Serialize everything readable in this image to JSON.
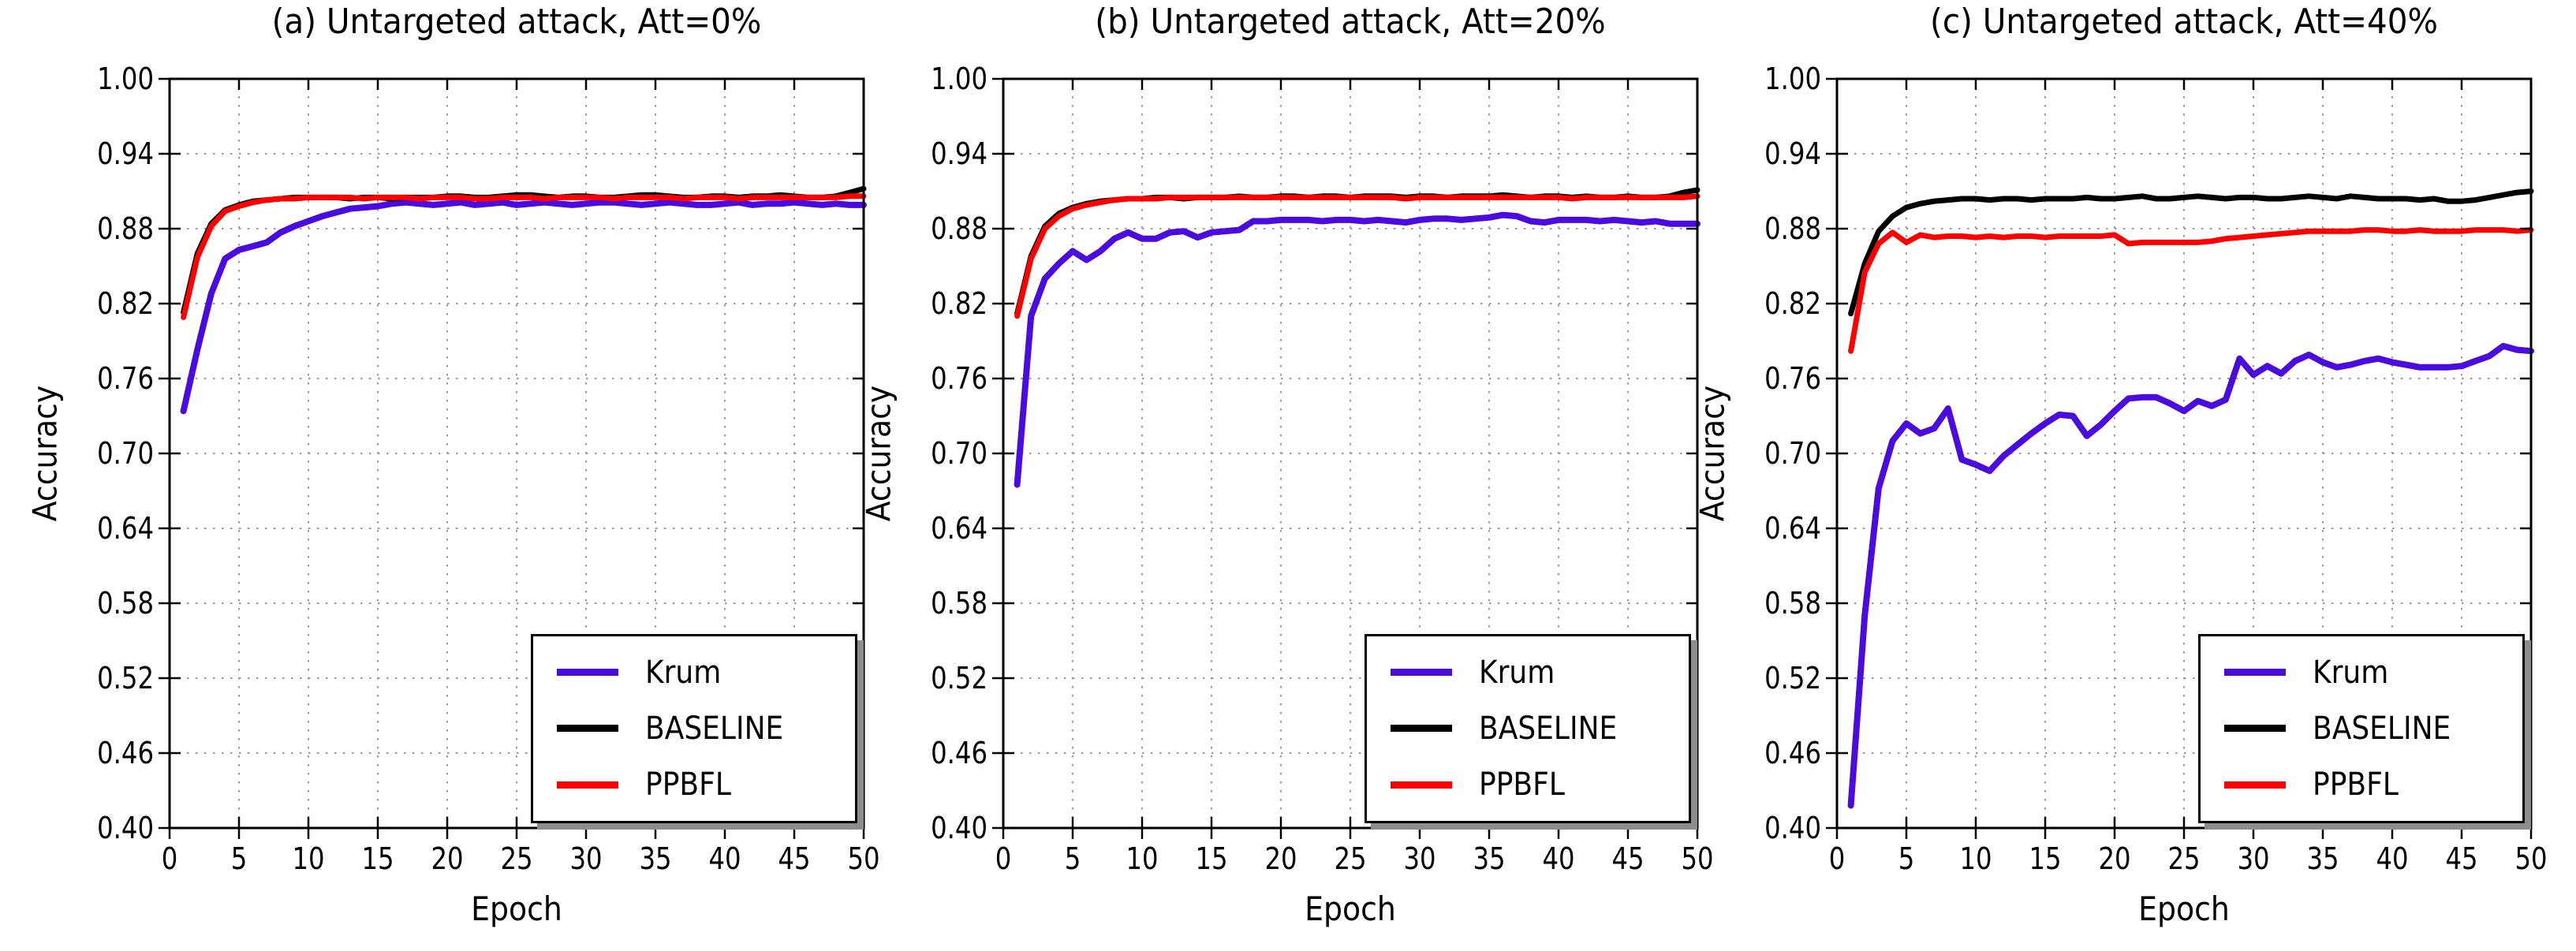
{
  "figure": {
    "background": "#ffffff",
    "axis_color": "#000000",
    "grid_color": "#999999",
    "ylabel": "Accuracy",
    "xlabel": "Epoch",
    "ytick_labels": [
      "0.40",
      "0.46",
      "0.52",
      "0.58",
      "0.64",
      "0.70",
      "0.76",
      "0.82",
      "0.88",
      "0.94",
      "1.00"
    ],
    "xtick_labels": [
      "0",
      "5",
      "10",
      "15",
      "20",
      "25",
      "30",
      "35",
      "40",
      "45",
      "50"
    ],
    "legend": {
      "position": "lower right",
      "entries": [
        {
          "label": "Krum",
          "color": "#4b0be0"
        },
        {
          "label": "BASELINE",
          "color": "#000000"
        },
        {
          "label": "PPBFL",
          "color": "#ff0000"
        }
      ]
    }
  },
  "chart_data": [
    {
      "type": "line",
      "title": "(a) Untargeted attack, Att=0%",
      "xlabel": "Epoch",
      "ylabel": "Accuracy",
      "xlim": [
        0,
        50
      ],
      "ylim": [
        0.4,
        1.0
      ],
      "xticks": [
        0,
        5,
        10,
        15,
        20,
        25,
        30,
        35,
        40,
        45,
        50
      ],
      "yticks": [
        0.4,
        0.46,
        0.52,
        0.58,
        0.64,
        0.7,
        0.76,
        0.82,
        0.88,
        0.94,
        1.0
      ],
      "grid": true,
      "legend_position": "lower right",
      "x": [
        1,
        2,
        3,
        4,
        5,
        6,
        7,
        8,
        9,
        10,
        11,
        12,
        13,
        14,
        15,
        16,
        17,
        18,
        19,
        20,
        21,
        22,
        23,
        24,
        25,
        26,
        27,
        28,
        29,
        30,
        31,
        32,
        33,
        34,
        35,
        36,
        37,
        38,
        39,
        40,
        41,
        42,
        43,
        44,
        45,
        46,
        47,
        48,
        49,
        50
      ],
      "series": [
        {
          "name": "Krum",
          "color": "#4b0be0",
          "values": [
            0.734,
            0.783,
            0.828,
            0.856,
            0.863,
            0.866,
            0.869,
            0.877,
            0.882,
            0.886,
            0.89,
            0.893,
            0.896,
            0.897,
            0.898,
            0.9,
            0.901,
            0.9,
            0.899,
            0.9,
            0.901,
            0.899,
            0.9,
            0.901,
            0.899,
            0.9,
            0.901,
            0.9,
            0.899,
            0.9,
            0.901,
            0.901,
            0.9,
            0.899,
            0.9,
            0.901,
            0.9,
            0.899,
            0.899,
            0.9,
            0.901,
            0.899,
            0.9,
            0.9,
            0.901,
            0.9,
            0.899,
            0.9,
            0.899,
            0.899
          ]
        },
        {
          "name": "BASELINE",
          "color": "#000000",
          "values": [
            0.813,
            0.86,
            0.884,
            0.895,
            0.899,
            0.902,
            0.903,
            0.904,
            0.905,
            0.905,
            0.905,
            0.905,
            0.904,
            0.905,
            0.905,
            0.904,
            0.905,
            0.905,
            0.905,
            0.906,
            0.906,
            0.905,
            0.905,
            0.906,
            0.907,
            0.907,
            0.906,
            0.905,
            0.906,
            0.906,
            0.905,
            0.905,
            0.906,
            0.907,
            0.907,
            0.906,
            0.905,
            0.905,
            0.906,
            0.906,
            0.905,
            0.906,
            0.906,
            0.907,
            0.906,
            0.905,
            0.905,
            0.906,
            0.909,
            0.912
          ]
        },
        {
          "name": "PPBFL",
          "color": "#ff0000",
          "values": [
            0.809,
            0.857,
            0.882,
            0.894,
            0.898,
            0.901,
            0.903,
            0.904,
            0.904,
            0.905,
            0.905,
            0.905,
            0.905,
            0.904,
            0.905,
            0.905,
            0.905,
            0.904,
            0.905,
            0.905,
            0.905,
            0.904,
            0.904,
            0.905,
            0.905,
            0.905,
            0.904,
            0.905,
            0.905,
            0.905,
            0.905,
            0.904,
            0.905,
            0.905,
            0.905,
            0.905,
            0.904,
            0.905,
            0.905,
            0.905,
            0.904,
            0.905,
            0.905,
            0.905,
            0.905,
            0.905,
            0.905,
            0.905,
            0.906,
            0.906
          ]
        }
      ]
    },
    {
      "type": "line",
      "title": "(b) Untargeted attack, Att=20%",
      "xlabel": "Epoch",
      "ylabel": "Accuracy",
      "xlim": [
        0,
        50
      ],
      "ylim": [
        0.4,
        1.0
      ],
      "xticks": [
        0,
        5,
        10,
        15,
        20,
        25,
        30,
        35,
        40,
        45,
        50
      ],
      "yticks": [
        0.4,
        0.46,
        0.52,
        0.58,
        0.64,
        0.7,
        0.76,
        0.82,
        0.88,
        0.94,
        1.0
      ],
      "grid": true,
      "legend_position": "lower right",
      "x": [
        1,
        2,
        3,
        4,
        5,
        6,
        7,
        8,
        9,
        10,
        11,
        12,
        13,
        14,
        15,
        16,
        17,
        18,
        19,
        20,
        21,
        22,
        23,
        24,
        25,
        26,
        27,
        28,
        29,
        30,
        31,
        32,
        33,
        34,
        35,
        36,
        37,
        38,
        39,
        40,
        41,
        42,
        43,
        44,
        45,
        46,
        47,
        48,
        49,
        50
      ],
      "series": [
        {
          "name": "Krum",
          "color": "#4b0be0",
          "values": [
            0.675,
            0.81,
            0.84,
            0.852,
            0.862,
            0.855,
            0.862,
            0.872,
            0.877,
            0.872,
            0.872,
            0.877,
            0.878,
            0.873,
            0.877,
            0.878,
            0.879,
            0.886,
            0.886,
            0.887,
            0.887,
            0.887,
            0.886,
            0.887,
            0.887,
            0.886,
            0.887,
            0.886,
            0.885,
            0.887,
            0.888,
            0.888,
            0.887,
            0.888,
            0.889,
            0.891,
            0.89,
            0.886,
            0.885,
            0.887,
            0.887,
            0.887,
            0.886,
            0.887,
            0.886,
            0.885,
            0.886,
            0.884,
            0.884,
            0.884
          ]
        },
        {
          "name": "BASELINE",
          "color": "#000000",
          "values": [
            0.812,
            0.858,
            0.882,
            0.892,
            0.897,
            0.9,
            0.902,
            0.903,
            0.904,
            0.904,
            0.905,
            0.905,
            0.904,
            0.905,
            0.905,
            0.905,
            0.906,
            0.905,
            0.905,
            0.906,
            0.906,
            0.905,
            0.906,
            0.906,
            0.905,
            0.906,
            0.906,
            0.906,
            0.905,
            0.906,
            0.906,
            0.905,
            0.906,
            0.906,
            0.906,
            0.907,
            0.906,
            0.905,
            0.906,
            0.906,
            0.905,
            0.906,
            0.905,
            0.905,
            0.906,
            0.905,
            0.905,
            0.906,
            0.909,
            0.911
          ]
        },
        {
          "name": "PPBFL",
          "color": "#ff0000",
          "values": [
            0.81,
            0.856,
            0.88,
            0.89,
            0.896,
            0.899,
            0.901,
            0.903,
            0.904,
            0.904,
            0.904,
            0.905,
            0.905,
            0.905,
            0.905,
            0.905,
            0.905,
            0.905,
            0.905,
            0.905,
            0.905,
            0.905,
            0.905,
            0.905,
            0.905,
            0.905,
            0.905,
            0.905,
            0.904,
            0.905,
            0.905,
            0.905,
            0.905,
            0.905,
            0.905,
            0.905,
            0.905,
            0.905,
            0.905,
            0.905,
            0.904,
            0.905,
            0.905,
            0.905,
            0.905,
            0.905,
            0.905,
            0.905,
            0.905,
            0.906
          ]
        }
      ]
    },
    {
      "type": "line",
      "title": "(c) Untargeted attack, Att=40%",
      "xlabel": "Epoch",
      "ylabel": "Accuracy",
      "xlim": [
        0,
        50
      ],
      "ylim": [
        0.4,
        1.0
      ],
      "xticks": [
        0,
        5,
        10,
        15,
        20,
        25,
        30,
        35,
        40,
        45,
        50
      ],
      "yticks": [
        0.4,
        0.46,
        0.52,
        0.58,
        0.64,
        0.7,
        0.76,
        0.82,
        0.88,
        0.94,
        1.0
      ],
      "grid": true,
      "legend_position": "lower right",
      "x": [
        1,
        2,
        3,
        4,
        5,
        6,
        7,
        8,
        9,
        10,
        11,
        12,
        13,
        14,
        15,
        16,
        17,
        18,
        19,
        20,
        21,
        22,
        23,
        24,
        25,
        26,
        27,
        28,
        29,
        30,
        31,
        32,
        33,
        34,
        35,
        36,
        37,
        38,
        39,
        40,
        41,
        42,
        43,
        44,
        45,
        46,
        47,
        48,
        49,
        50
      ],
      "series": [
        {
          "name": "Krum",
          "color": "#4b0be0",
          "values": [
            0.418,
            0.57,
            0.672,
            0.71,
            0.724,
            0.716,
            0.72,
            0.736,
            0.695,
            0.691,
            0.686,
            0.698,
            0.707,
            0.716,
            0.724,
            0.731,
            0.73,
            0.714,
            0.723,
            0.734,
            0.744,
            0.745,
            0.745,
            0.74,
            0.734,
            0.742,
            0.738,
            0.743,
            0.776,
            0.763,
            0.77,
            0.764,
            0.774,
            0.779,
            0.773,
            0.769,
            0.771,
            0.774,
            0.776,
            0.773,
            0.771,
            0.769,
            0.769,
            0.769,
            0.77,
            0.774,
            0.778,
            0.786,
            0.783,
            0.782
          ]
        },
        {
          "name": "BASELINE",
          "color": "#000000",
          "values": [
            0.812,
            0.852,
            0.878,
            0.89,
            0.897,
            0.9,
            0.902,
            0.903,
            0.904,
            0.904,
            0.903,
            0.904,
            0.904,
            0.903,
            0.904,
            0.904,
            0.904,
            0.905,
            0.904,
            0.904,
            0.905,
            0.906,
            0.904,
            0.904,
            0.905,
            0.906,
            0.905,
            0.904,
            0.905,
            0.905,
            0.904,
            0.904,
            0.905,
            0.906,
            0.905,
            0.904,
            0.906,
            0.905,
            0.904,
            0.904,
            0.904,
            0.903,
            0.904,
            0.902,
            0.902,
            0.903,
            0.905,
            0.907,
            0.909,
            0.91
          ]
        },
        {
          "name": "PPBFL",
          "color": "#ff0000",
          "values": [
            0.782,
            0.845,
            0.868,
            0.877,
            0.869,
            0.875,
            0.873,
            0.874,
            0.874,
            0.873,
            0.874,
            0.873,
            0.874,
            0.874,
            0.873,
            0.874,
            0.874,
            0.874,
            0.874,
            0.875,
            0.868,
            0.869,
            0.869,
            0.869,
            0.869,
            0.869,
            0.87,
            0.872,
            0.873,
            0.874,
            0.875,
            0.876,
            0.877,
            0.878,
            0.878,
            0.878,
            0.878,
            0.879,
            0.879,
            0.878,
            0.878,
            0.879,
            0.878,
            0.878,
            0.878,
            0.879,
            0.879,
            0.879,
            0.878,
            0.879
          ]
        }
      ]
    }
  ]
}
